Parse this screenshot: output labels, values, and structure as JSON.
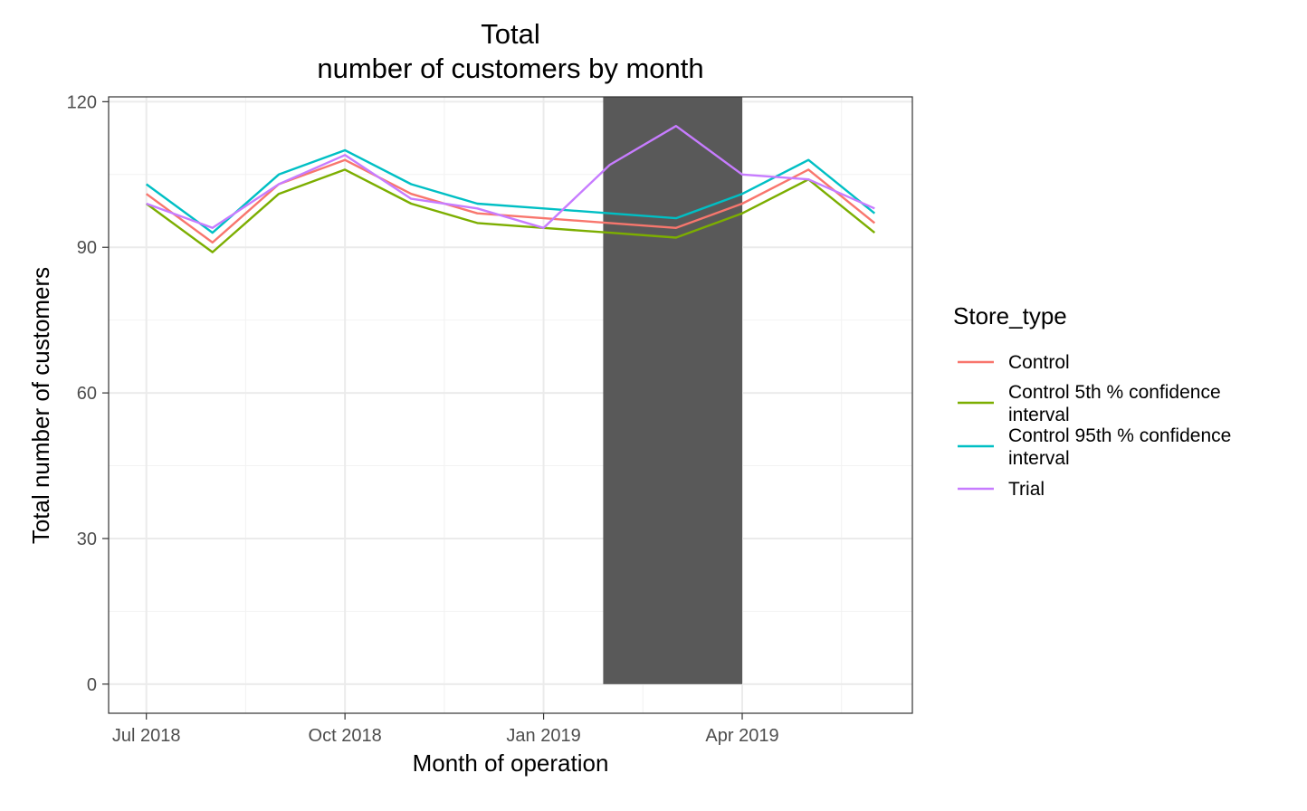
{
  "chart_data": {
    "type": "line",
    "title_lines": [
      "Total",
      "number of customers by month"
    ],
    "xlabel": "Month of operation",
    "ylabel": "Total number of customers",
    "x_ticks": [
      "Jul 2018",
      "Oct 2018",
      "Jan 2019",
      "Apr 2019"
    ],
    "y_ticks": [
      "0",
      "30",
      "60",
      "90",
      "120"
    ],
    "ylim": [
      -6,
      121
    ],
    "grid": true,
    "legend_position": "right",
    "legend_title": "Store_type",
    "x": [
      "2018-07",
      "2018-08",
      "2018-09",
      "2018-10",
      "2018-11",
      "2018-12",
      "2019-01",
      "2019-02",
      "2019-03",
      "2019-04",
      "2019-05",
      "2019-06"
    ],
    "series": [
      {
        "name": "Control",
        "label_lines": [
          "Control"
        ],
        "color": "#F8766D",
        "values": [
          101,
          91,
          103,
          108,
          101,
          97,
          96,
          95,
          94,
          99,
          106,
          95
        ]
      },
      {
        "name": "Control 5th % confidence interval",
        "label_lines": [
          "Control 5th % confidence",
          "interval"
        ],
        "color": "#7CAE00",
        "values": [
          99,
          89,
          101,
          106,
          99,
          95,
          94,
          93,
          92,
          97,
          104,
          93
        ]
      },
      {
        "name": "Control 95th % confidence interval",
        "label_lines": [
          "Control 95th % confidence",
          "interval"
        ],
        "color": "#00BFC4",
        "values": [
          103,
          93,
          105,
          110,
          103,
          99,
          98,
          97,
          96,
          101,
          108,
          97
        ]
      },
      {
        "name": "Trial",
        "label_lines": [
          "Trial"
        ],
        "color": "#C77CFF",
        "values": [
          99,
          94,
          103,
          109,
          100,
          98,
          94,
          107,
          115,
          105,
          104,
          98
        ]
      }
    ],
    "highlight": {
      "from": "2019-02",
      "to": "2019-04",
      "color": "#595959"
    }
  }
}
